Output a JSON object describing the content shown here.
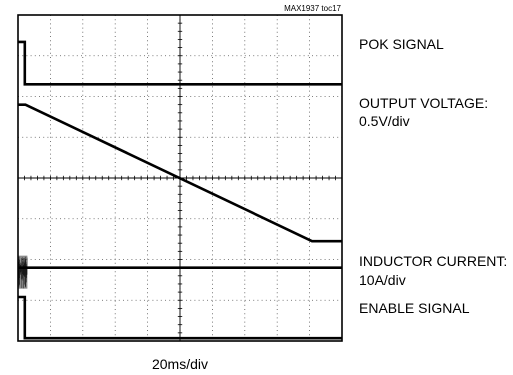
{
  "figure_id": "MAX1937 toc17",
  "chart_data": {
    "type": "line",
    "title": "",
    "x_axis": {
      "divisions": 10,
      "scale_label": "20ms/div",
      "range_ms": [
        0,
        200
      ]
    },
    "y_axis": {
      "divisions": 8,
      "range_div": [
        0,
        8
      ]
    },
    "grid": true,
    "background": "#ffffff",
    "trace_color": "#000000",
    "series": [
      {
        "id": "pok",
        "name": "POK SIGNAL",
        "scale": "",
        "points_ms_div": [
          [
            0,
            7.34
          ],
          [
            4.2,
            7.34
          ],
          [
            4.2,
            6.3
          ],
          [
            200,
            6.3
          ]
        ]
      },
      {
        "id": "output",
        "name": "OUTPUT VOLTAGE:",
        "scale": "0.5V/div",
        "points_ms_div": [
          [
            0,
            5.8
          ],
          [
            4.6,
            5.8
          ],
          [
            181.5,
            2.45
          ],
          [
            200,
            2.45
          ]
        ]
      },
      {
        "id": "inductor",
        "name": "INDUCTOR CURRENT:",
        "scale": "10A/div",
        "points_ms_div": [
          [
            0,
            1.8
          ],
          [
            200,
            1.8
          ]
        ],
        "noise_ms": [
          0,
          5.8
        ]
      },
      {
        "id": "enable",
        "name": "ENABLE SIGNAL",
        "scale": "",
        "points_ms_div": [
          [
            0,
            1.08
          ],
          [
            4.2,
            1.08
          ],
          [
            4.2,
            0.07
          ],
          [
            200,
            0.07
          ]
        ]
      }
    ]
  }
}
